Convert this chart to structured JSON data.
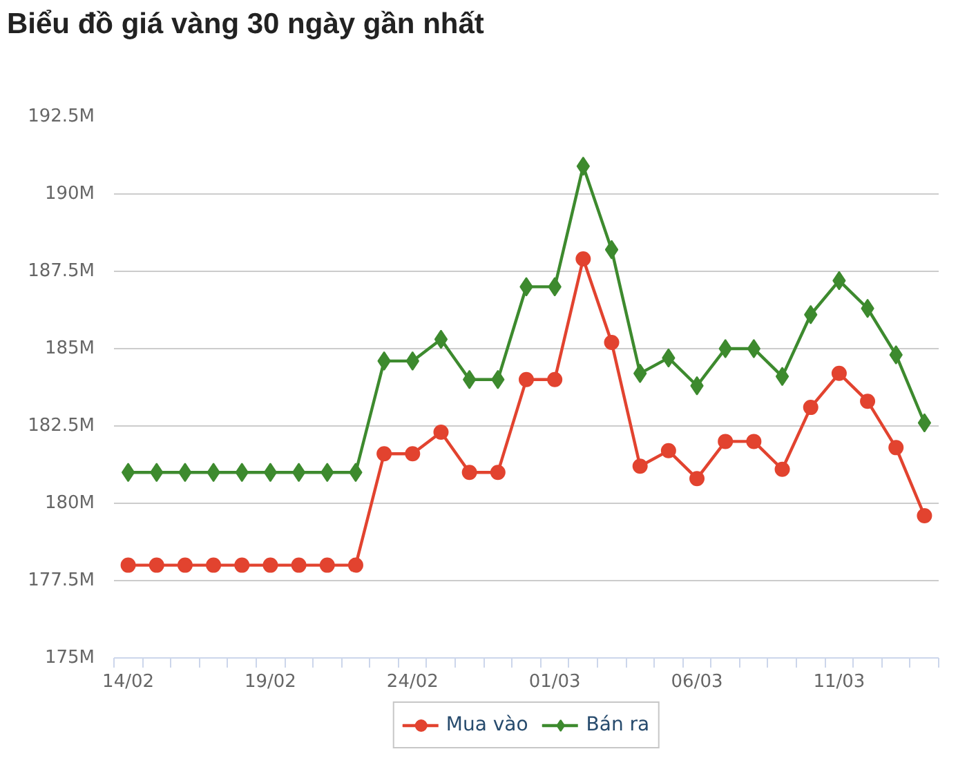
{
  "chart_data": {
    "type": "line",
    "title": "Biểu đồ giá vàng 30 ngày gần nhất",
    "categories": [
      "14/02",
      null,
      null,
      null,
      null,
      "19/02",
      null,
      null,
      null,
      null,
      "24/02",
      null,
      null,
      null,
      null,
      "01/03",
      null,
      null,
      null,
      null,
      "06/03",
      null,
      null,
      null,
      null,
      "11/03",
      null,
      null,
      null
    ],
    "series": [
      {
        "name": "Mua vào",
        "color": "#e2432f",
        "marker": "circle",
        "values": [
          178,
          178,
          178,
          178,
          178,
          178,
          178,
          178,
          178,
          181.6,
          181.6,
          182.3,
          181.0,
          181.0,
          184.0,
          184.0,
          187.9,
          185.2,
          181.2,
          181.7,
          180.8,
          182.0,
          182.0,
          181.1,
          183.1,
          184.2,
          183.3,
          181.8,
          179.6
        ]
      },
      {
        "name": "Bán ra",
        "color": "#3d8a2e",
        "marker": "diamond",
        "values": [
          181,
          181,
          181,
          181,
          181,
          181,
          181,
          181,
          181,
          184.6,
          184.6,
          185.3,
          184.0,
          184.0,
          187.0,
          187.0,
          190.9,
          188.2,
          184.2,
          184.7,
          183.8,
          185.0,
          185.0,
          184.1,
          186.1,
          187.2,
          186.3,
          184.8,
          182.6
        ]
      }
    ],
    "ylim": [
      175,
      192.5
    ],
    "yticks": [
      {
        "value": 175,
        "label": "175M"
      },
      {
        "value": 177.5,
        "label": "177.5M"
      },
      {
        "value": 180,
        "label": "180M"
      },
      {
        "value": 182.5,
        "label": "182.5M"
      },
      {
        "value": 185,
        "label": "185M"
      },
      {
        "value": 187.5,
        "label": "187.5M"
      },
      {
        "value": 190,
        "label": "190M"
      },
      {
        "value": 192.5,
        "label": "192.5M"
      }
    ],
    "grid": "y",
    "legend": "bottom",
    "line_style": "solid"
  }
}
